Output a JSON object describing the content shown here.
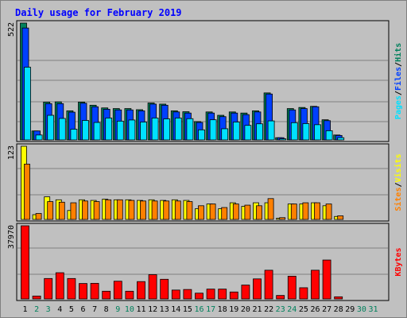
{
  "title": "Daily usage for February 2019",
  "colors": {
    "hits": "#00805c",
    "files": "#0040ff",
    "pages": "#00e0ff",
    "visits": "#ffff00",
    "sites": "#ff8000",
    "kbytes": "#ff0000",
    "weekday_label": "#000000",
    "weekend_label": "#00805c",
    "panel_bg": "#c0c0c0",
    "grid": "#808080"
  },
  "chart_data": [
    {
      "type": "bar",
      "categories": [
        "1",
        "2",
        "3",
        "4",
        "5",
        "6",
        "7",
        "8",
        "9",
        "10",
        "11",
        "12",
        "13",
        "14",
        "15",
        "16",
        "17",
        "18",
        "19",
        "20",
        "21",
        "22",
        "23",
        "24",
        "25",
        "26",
        "27",
        "28",
        "29",
        "30",
        "31"
      ],
      "weekend_days": [
        "2",
        "3",
        "9",
        "10",
        "16",
        "17",
        "23",
        "24",
        "30",
        "31"
      ],
      "ymax_label": "522",
      "ylim": [
        0,
        522
      ],
      "series": [
        {
          "name": "Hits",
          "values": [
            522,
            40,
            169,
            170,
            130,
            169,
            155,
            143,
            140,
            140,
            135,
            165,
            160,
            130,
            126,
            82,
            125,
            110,
            125,
            120,
            130,
            210,
            10,
            140,
            145,
            150,
            90,
            22,
            0,
            0,
            0
          ]
        },
        {
          "name": "Files",
          "values": [
            500,
            40,
            162,
            162,
            124,
            164,
            148,
            137,
            134,
            134,
            130,
            160,
            155,
            125,
            120,
            78,
            120,
            104,
            120,
            113,
            125,
            205,
            10,
            134,
            140,
            148,
            86,
            20,
            0,
            0,
            0
          ]
        },
        {
          "name": "Pages",
          "values": [
            325,
            22,
            110,
            96,
            48,
            87,
            78,
            98,
            84,
            89,
            80,
            98,
            94,
            98,
            95,
            45,
            90,
            50,
            80,
            65,
            72,
            85,
            5,
            77,
            73,
            68,
            41,
            10,
            0,
            0,
            0
          ]
        }
      ],
      "legend_text": [
        {
          "key": "hits",
          "text": "Hits"
        },
        {
          "key": "sep",
          "text": "/"
        },
        {
          "key": "files",
          "text": "Files"
        },
        {
          "key": "sep",
          "text": "/"
        },
        {
          "key": "pages",
          "text": "Pages"
        }
      ]
    },
    {
      "type": "bar",
      "categories": [
        "1",
        "2",
        "3",
        "4",
        "5",
        "6",
        "7",
        "8",
        "9",
        "10",
        "11",
        "12",
        "13",
        "14",
        "15",
        "16",
        "17",
        "18",
        "19",
        "20",
        "21",
        "22",
        "23",
        "24",
        "25",
        "26",
        "27",
        "28",
        "29",
        "30",
        "31"
      ],
      "ymax_label": "123",
      "ylim": [
        0,
        123
      ],
      "series": [
        {
          "name": "Visits",
          "values": [
            123,
            8,
            38,
            33,
            15,
            33,
            32,
            34,
            33,
            33,
            32,
            33,
            32,
            33,
            32,
            18,
            26,
            18,
            28,
            22,
            28,
            28,
            2,
            26,
            26,
            28,
            23,
            5,
            0,
            0,
            0
          ]
        },
        {
          "name": "Sites",
          "values": [
            93,
            10,
            30,
            29,
            28,
            31,
            30,
            33,
            33,
            32,
            31,
            31,
            31,
            31,
            30,
            23,
            26,
            20,
            26,
            24,
            23,
            35,
            3,
            26,
            28,
            28,
            26,
            6,
            0,
            0,
            0
          ]
        }
      ],
      "legend_text": [
        {
          "key": "visits",
          "text": "Visits"
        },
        {
          "key": "sep",
          "text": "/"
        },
        {
          "key": "sites",
          "text": "Sites"
        }
      ]
    },
    {
      "type": "bar",
      "categories": [
        "1",
        "2",
        "3",
        "4",
        "5",
        "6",
        "7",
        "8",
        "9",
        "10",
        "11",
        "12",
        "13",
        "14",
        "15",
        "16",
        "17",
        "18",
        "19",
        "20",
        "21",
        "22",
        "23",
        "24",
        "25",
        "26",
        "27",
        "28",
        "29",
        "30",
        "31"
      ],
      "ymax_label": "37970",
      "ylim": [
        0,
        37970
      ],
      "series": [
        {
          "name": "KBytes",
          "values": [
            37970,
            1500,
            10600,
            13600,
            10600,
            8000,
            8100,
            4000,
            9200,
            4000,
            9000,
            12600,
            10200,
            4600,
            4900,
            3000,
            5100,
            5100,
            3600,
            7200,
            10400,
            14900,
            1800,
            11800,
            5800,
            14900,
            20200,
            1100,
            0,
            0,
            0
          ]
        }
      ],
      "legend_text": [
        {
          "key": "kbytes",
          "text": "KBytes"
        }
      ]
    }
  ]
}
